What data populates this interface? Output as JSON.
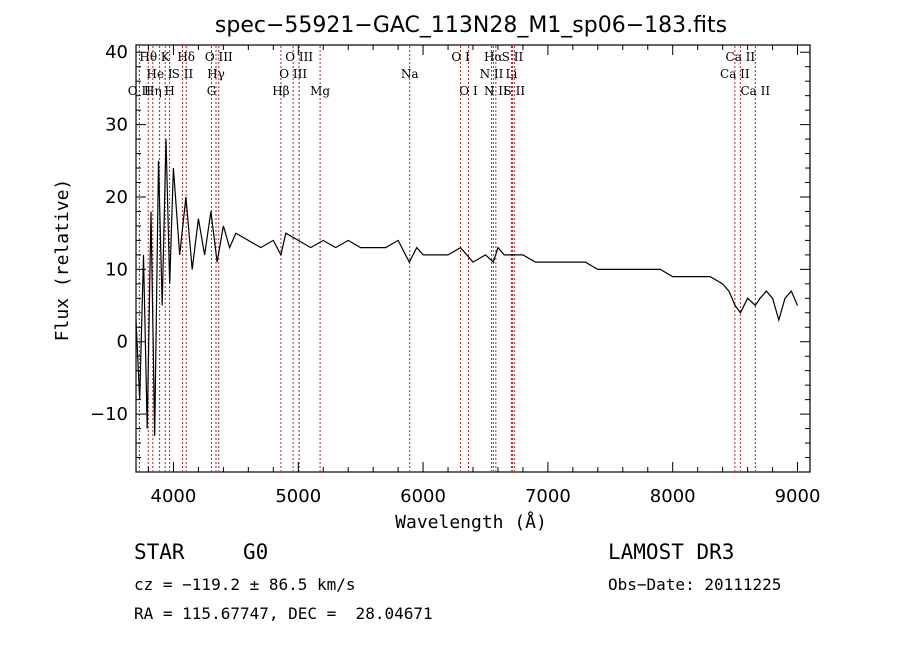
{
  "chart_data": {
    "type": "line",
    "title": "spec−55921−GAC_113N28_M1_sp06−183.fits",
    "xlabel": "Wavelength (Å)",
    "ylabel": "Flux (relative)",
    "xlim": [
      3700,
      9100
    ],
    "ylim": [
      -18,
      41
    ],
    "xticks": [
      4000,
      5000,
      6000,
      7000,
      8000,
      9000
    ],
    "xtick_labels": [
      "4000",
      "5000",
      "6000",
      "7000",
      "8000",
      "9000"
    ],
    "yticks": [
      -10,
      0,
      10,
      20,
      30,
      40
    ],
    "ytick_labels": [
      "−10",
      "0",
      "10",
      "20",
      "30",
      "40"
    ],
    "grid": false,
    "series": [
      {
        "name": "flux",
        "x": [
          3700,
          3730,
          3760,
          3790,
          3820,
          3850,
          3880,
          3910,
          3940,
          3970,
          4000,
          4050,
          4100,
          4150,
          4200,
          4250,
          4300,
          4350,
          4400,
          4450,
          4500,
          4600,
          4700,
          4800,
          4861,
          4900,
          5000,
          5100,
          5200,
          5300,
          5400,
          5500,
          5600,
          5700,
          5800,
          5890,
          5950,
          6000,
          6100,
          6200,
          6300,
          6400,
          6500,
          6563,
          6600,
          6650,
          6700,
          6800,
          6900,
          7000,
          7100,
          7200,
          7300,
          7400,
          7500,
          7600,
          7700,
          7800,
          7900,
          8000,
          8100,
          8200,
          8300,
          8400,
          8450,
          8500,
          8542,
          8600,
          8662,
          8700,
          8750,
          8800,
          8850,
          8900,
          8950,
          9000
        ],
        "values": [
          3,
          -8,
          12,
          -12,
          18,
          -13,
          25,
          5,
          28,
          8,
          24,
          12,
          20,
          10,
          17,
          12,
          18,
          11,
          16,
          13,
          15,
          14,
          13,
          14,
          12,
          15,
          14,
          13,
          14,
          13,
          14,
          13,
          13,
          13,
          14,
          11,
          13,
          12,
          12,
          12,
          13,
          11,
          12,
          11,
          13,
          12,
          12,
          12,
          11,
          11,
          11,
          11,
          11,
          10,
          10,
          10,
          10,
          10,
          10,
          9,
          9,
          9,
          9,
          8,
          7,
          5,
          4,
          6,
          5,
          6,
          7,
          6,
          3,
          6,
          7,
          5
        ]
      }
    ],
    "spectral_lines": [
      {
        "label": "O II",
        "wavelength": 3727,
        "row": 3
      },
      {
        "label": "Hθ",
        "wavelength": 3798,
        "row": 1
      },
      {
        "label": "Hη",
        "wavelength": 3835,
        "row": 3
      },
      {
        "label": "He I",
        "wavelength": 3889,
        "row": 2
      },
      {
        "label": "K",
        "wavelength": 3934,
        "row": 1
      },
      {
        "label": "H",
        "wavelength": 3969,
        "row": 3
      },
      {
        "label": "S II",
        "wavelength": 4072,
        "row": 2
      },
      {
        "label": "Hδ",
        "wavelength": 4102,
        "row": 1
      },
      {
        "label": "G",
        "wavelength": 4305,
        "row": 3
      },
      {
        "label": "Hγ",
        "wavelength": 4341,
        "row": 2
      },
      {
        "label": "O III",
        "wavelength": 4363,
        "row": 1
      },
      {
        "label": "Hβ",
        "wavelength": 4861,
        "row": 3
      },
      {
        "label": "O III",
        "wavelength": 4959,
        "row": 2
      },
      {
        "label": "O III",
        "wavelength": 5007,
        "row": 1
      },
      {
        "label": "Mg",
        "wavelength": 5175,
        "row": 3
      },
      {
        "label": "Na",
        "wavelength": 5893,
        "row": 2
      },
      {
        "label": "O I",
        "wavelength": 6300,
        "row": 1
      },
      {
        "label": "O I",
        "wavelength": 6364,
        "row": 3
      },
      {
        "label": "N II",
        "wavelength": 6548,
        "row": 2
      },
      {
        "label": "Hα",
        "wavelength": 6563,
        "row": 1
      },
      {
        "label": "N II",
        "wavelength": 6583,
        "row": 3
      },
      {
        "label": "Li",
        "wavelength": 6708,
        "row": 2
      },
      {
        "label": "S II",
        "wavelength": 6716,
        "row": 1
      },
      {
        "label": "S II",
        "wavelength": 6731,
        "row": 3
      },
      {
        "label": "Ca II",
        "wavelength": 8498,
        "row": 2
      },
      {
        "label": "Ca II",
        "wavelength": 8542,
        "row": 1
      },
      {
        "label": "Ca II",
        "wavelength": 8662,
        "row": 3
      }
    ]
  },
  "info": {
    "object_class": "STAR",
    "subclass": "G0",
    "survey": "LAMOST DR3",
    "redshift_line": "cz = −119.2 ± 86.5 km/s",
    "obs_date_line": "Obs−Date: 20111225",
    "coords_line": "RA = 115.67747, DEC =  28.04671"
  },
  "colors": {
    "spectrum": "#000000",
    "line_marker": "#b22222",
    "axis": "#000000"
  }
}
